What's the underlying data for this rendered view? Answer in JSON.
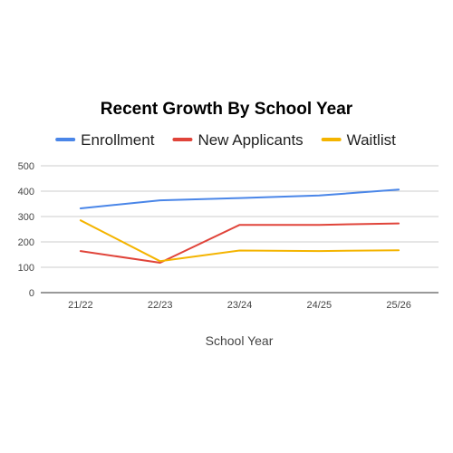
{
  "chart_data": {
    "type": "line",
    "title": "Recent Growth By School Year",
    "xlabel": "School Year",
    "ylabel": "",
    "categories": [
      "21/22",
      "22/23",
      "23/24",
      "24/25",
      "25/26"
    ],
    "ylim": [
      0,
      500
    ],
    "yticks": [
      0,
      100,
      200,
      300,
      400,
      500
    ],
    "grid": true,
    "legend_position": "top",
    "series": [
      {
        "name": "Enrollment",
        "color": "#4a86e8",
        "values": [
          332,
          364,
          373,
          383,
          406
        ]
      },
      {
        "name": "New Applicants",
        "color": "#e0443a",
        "values": [
          164,
          118,
          267,
          267,
          273
        ]
      },
      {
        "name": "Waitlist",
        "color": "#f4b400",
        "values": [
          285,
          124,
          166,
          164,
          167
        ]
      }
    ]
  }
}
